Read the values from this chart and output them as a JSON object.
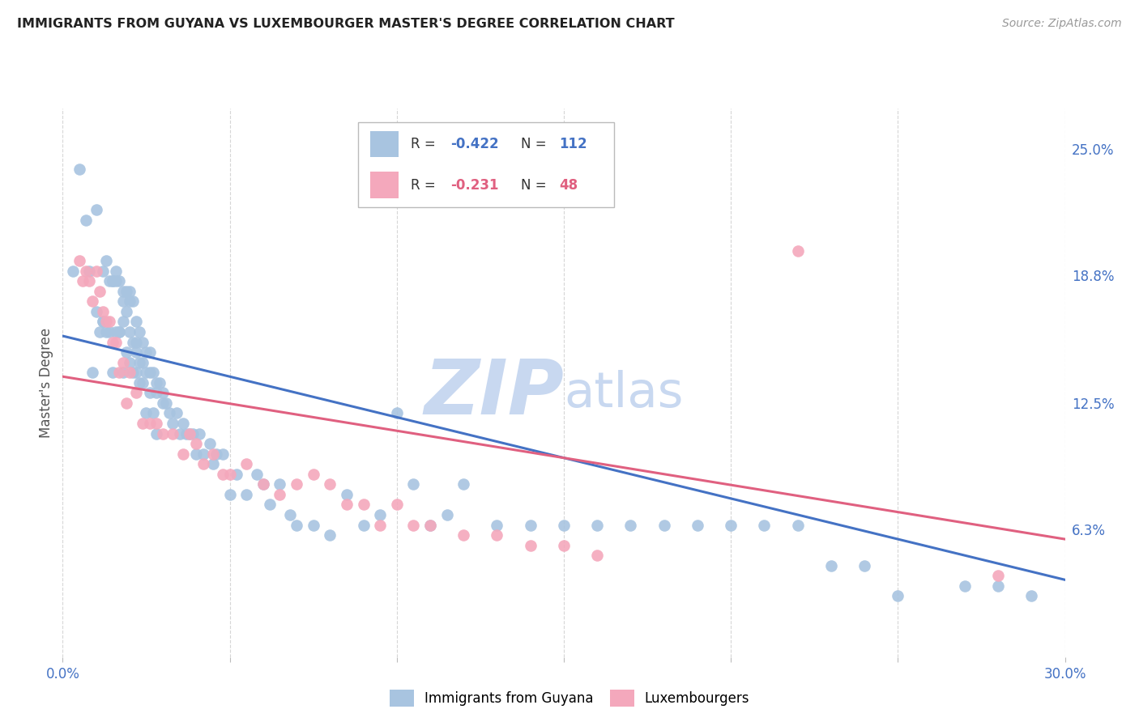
{
  "title": "IMMIGRANTS FROM GUYANA VS LUXEMBOURGER MASTER'S DEGREE CORRELATION CHART",
  "source": "Source: ZipAtlas.com",
  "ylabel": "Master's Degree",
  "right_yticks": [
    "25.0%",
    "18.8%",
    "12.5%",
    "6.3%"
  ],
  "right_ytick_vals": [
    0.25,
    0.188,
    0.125,
    0.063
  ],
  "xmin": 0.0,
  "xmax": 0.3,
  "ymin": 0.0,
  "ymax": 0.27,
  "legend_blue_r": "-0.422",
  "legend_blue_n": "112",
  "legend_pink_r": "-0.231",
  "legend_pink_n": "48",
  "blue_color": "#a8c4e0",
  "pink_color": "#f4a8bc",
  "line_blue": "#4472c4",
  "line_pink": "#e06080",
  "watermark_zip_color": "#c8d8f0",
  "watermark_atlas_color": "#c8d8f0",
  "title_color": "#222222",
  "axis_color": "#4472c4",
  "grid_color": "#cccccc",
  "blue_scatter_x": [
    0.003,
    0.007,
    0.01,
    0.012,
    0.012,
    0.013,
    0.014,
    0.015,
    0.015,
    0.016,
    0.016,
    0.017,
    0.017,
    0.018,
    0.018,
    0.018,
    0.019,
    0.019,
    0.02,
    0.02,
    0.02,
    0.021,
    0.021,
    0.022,
    0.022,
    0.022,
    0.023,
    0.023,
    0.024,
    0.024,
    0.025,
    0.025,
    0.026,
    0.026,
    0.027,
    0.028,
    0.028,
    0.029,
    0.03,
    0.03,
    0.031,
    0.032,
    0.033,
    0.034,
    0.035,
    0.036,
    0.037,
    0.038,
    0.039,
    0.04,
    0.041,
    0.042,
    0.044,
    0.045,
    0.046,
    0.048,
    0.05,
    0.052,
    0.055,
    0.058,
    0.06,
    0.062,
    0.065,
    0.068,
    0.07,
    0.075,
    0.08,
    0.085,
    0.09,
    0.095,
    0.1,
    0.105,
    0.11,
    0.115,
    0.12,
    0.13,
    0.14,
    0.15,
    0.16,
    0.17,
    0.18,
    0.19,
    0.2,
    0.21,
    0.22,
    0.23,
    0.24,
    0.25,
    0.27,
    0.28,
    0.29,
    0.005,
    0.008,
    0.009,
    0.01,
    0.011,
    0.012,
    0.013,
    0.014,
    0.015,
    0.016,
    0.017,
    0.018,
    0.019,
    0.02,
    0.021,
    0.022,
    0.023,
    0.024,
    0.025,
    0.026,
    0.027,
    0.028
  ],
  "blue_scatter_y": [
    0.19,
    0.215,
    0.22,
    0.165,
    0.19,
    0.195,
    0.185,
    0.185,
    0.185,
    0.19,
    0.185,
    0.185,
    0.16,
    0.18,
    0.175,
    0.165,
    0.18,
    0.17,
    0.18,
    0.175,
    0.16,
    0.175,
    0.155,
    0.165,
    0.155,
    0.15,
    0.16,
    0.145,
    0.155,
    0.145,
    0.15,
    0.14,
    0.15,
    0.14,
    0.14,
    0.135,
    0.13,
    0.135,
    0.13,
    0.125,
    0.125,
    0.12,
    0.115,
    0.12,
    0.11,
    0.115,
    0.11,
    0.11,
    0.11,
    0.1,
    0.11,
    0.1,
    0.105,
    0.095,
    0.1,
    0.1,
    0.08,
    0.09,
    0.08,
    0.09,
    0.085,
    0.075,
    0.085,
    0.07,
    0.065,
    0.065,
    0.06,
    0.08,
    0.065,
    0.07,
    0.12,
    0.085,
    0.065,
    0.07,
    0.085,
    0.065,
    0.065,
    0.065,
    0.065,
    0.065,
    0.065,
    0.065,
    0.065,
    0.065,
    0.065,
    0.045,
    0.045,
    0.03,
    0.035,
    0.035,
    0.03,
    0.24,
    0.19,
    0.14,
    0.17,
    0.16,
    0.165,
    0.16,
    0.16,
    0.14,
    0.16,
    0.16,
    0.14,
    0.15,
    0.145,
    0.14,
    0.14,
    0.135,
    0.135,
    0.12,
    0.13,
    0.12,
    0.11
  ],
  "pink_scatter_x": [
    0.005,
    0.006,
    0.007,
    0.008,
    0.009,
    0.01,
    0.011,
    0.012,
    0.013,
    0.014,
    0.015,
    0.016,
    0.017,
    0.018,
    0.019,
    0.02,
    0.022,
    0.024,
    0.026,
    0.028,
    0.03,
    0.033,
    0.036,
    0.038,
    0.04,
    0.042,
    0.045,
    0.048,
    0.05,
    0.055,
    0.06,
    0.065,
    0.07,
    0.075,
    0.08,
    0.085,
    0.09,
    0.095,
    0.1,
    0.105,
    0.11,
    0.12,
    0.13,
    0.14,
    0.15,
    0.16,
    0.22,
    0.28
  ],
  "pink_scatter_y": [
    0.195,
    0.185,
    0.19,
    0.185,
    0.175,
    0.19,
    0.18,
    0.17,
    0.165,
    0.165,
    0.155,
    0.155,
    0.14,
    0.145,
    0.125,
    0.14,
    0.13,
    0.115,
    0.115,
    0.115,
    0.11,
    0.11,
    0.1,
    0.11,
    0.105,
    0.095,
    0.1,
    0.09,
    0.09,
    0.095,
    0.085,
    0.08,
    0.085,
    0.09,
    0.085,
    0.075,
    0.075,
    0.065,
    0.075,
    0.065,
    0.065,
    0.06,
    0.06,
    0.055,
    0.055,
    0.05,
    0.2,
    0.04
  ],
  "blue_line_x": [
    0.0,
    0.3
  ],
  "blue_line_y": [
    0.158,
    0.038
  ],
  "pink_line_x": [
    0.0,
    0.3
  ],
  "pink_line_y": [
    0.138,
    0.058
  ]
}
